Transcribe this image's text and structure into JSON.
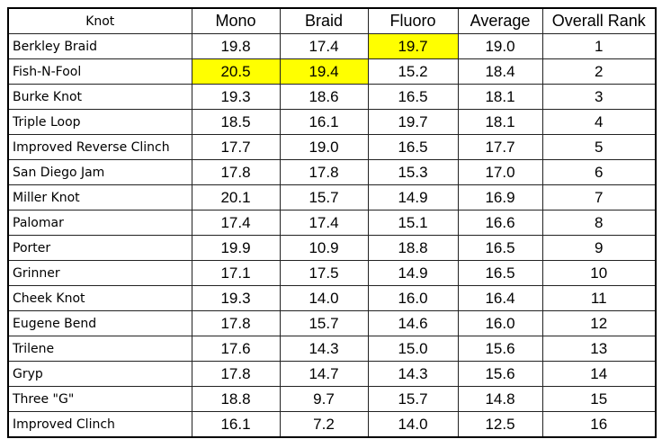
{
  "table": {
    "header": [
      "Knot",
      "Mono",
      "Braid",
      "Fluoro",
      "Average",
      "Overall Rank"
    ],
    "rows": [
      [
        "Berkley Braid",
        "19.8",
        "17.4",
        "19.7",
        "19.0",
        "1"
      ],
      [
        "Fish-N-Fool",
        "20.5",
        "19.4",
        "15.2",
        "18.4",
        "2"
      ],
      [
        "Burke Knot",
        "19.3",
        "18.6",
        "16.5",
        "18.1",
        "3"
      ],
      [
        "Triple Loop",
        "18.5",
        "16.1",
        "19.7",
        "18.1",
        "4"
      ],
      [
        "Improved Reverse Clinch",
        "17.7",
        "19.0",
        "16.5",
        "17.7",
        "5"
      ],
      [
        "San Diego Jam",
        "17.8",
        "17.8",
        "15.3",
        "17.0",
        "6"
      ],
      [
        "Miller Knot",
        "20.1",
        "15.7",
        "14.9",
        "16.9",
        "7"
      ],
      [
        "Palomar",
        "17.4",
        "17.4",
        "15.1",
        "16.6",
        "8"
      ],
      [
        "Porter",
        "19.9",
        "10.9",
        "18.8",
        "16.5",
        "9"
      ],
      [
        "Grinner",
        "17.1",
        "17.5",
        "14.9",
        "16.5",
        "10"
      ],
      [
        "Cheek Knot",
        "19.3",
        "14.0",
        "16.0",
        "16.4",
        "11"
      ],
      [
        "Eugene Bend",
        "17.8",
        "15.7",
        "14.6",
        "16.0",
        "12"
      ],
      [
        "Trilene",
        "17.6",
        "14.3",
        "15.0",
        "15.6",
        "13"
      ],
      [
        "Gryp",
        "17.8",
        "14.7",
        "14.3",
        "15.6",
        "14"
      ],
      [
        "Three \"G\"",
        "18.8",
        "9.7",
        "15.7",
        "14.8",
        "15"
      ],
      [
        "Improved Clinch",
        "16.1",
        "7.2",
        "14.0",
        "12.5",
        "16"
      ]
    ],
    "highlight_color": "#ffff00",
    "highlighted": [
      [
        0,
        3
      ],
      [
        1,
        1
      ],
      [
        1,
        2
      ]
    ]
  }
}
